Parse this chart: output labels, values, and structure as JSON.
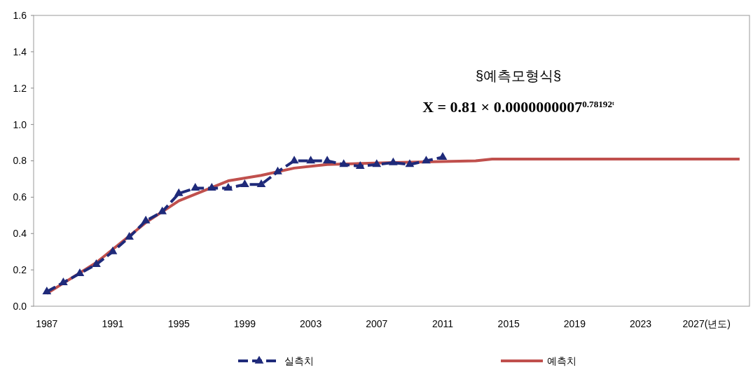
{
  "chart_data": {
    "type": "line",
    "annotations": [
      "§예측모형식§",
      "X = 0.81 × 0.0000000007$^{0.78192ᵗ}$"
    ],
    "xlim": [
      1986.2,
      2029.6
    ],
    "ylim": [
      0,
      1.6
    ],
    "xticks": [
      1987,
      1991,
      1995,
      1999,
      2003,
      2007,
      2011,
      2015,
      2019,
      2023,
      {
        "value": 2027,
        "label": "2027(년도)"
      }
    ],
    "yticks": [
      {
        "value": 0,
        "label": "0.0"
      },
      0.2,
      0.4,
      0.6,
      0.8,
      {
        "value": 1,
        "label": "1.0"
      },
      1.2,
      1.4,
      1.6
    ],
    "legend": "bottom",
    "grid": false,
    "series": [
      {
        "name": "실측치",
        "color": "#1f2a7a",
        "marker": "triangle",
        "line_style": "dashed",
        "x": [
          1987,
          1988,
          1989,
          1990,
          1991,
          1992,
          1993,
          1994,
          1995,
          1996,
          1997,
          1998,
          1999,
          2000,
          2001,
          2002,
          2003,
          2004,
          2005,
          2006,
          2007,
          2008,
          2009,
          2010,
          2011
        ],
        "values": [
          0.08,
          0.13,
          0.18,
          0.23,
          0.3,
          0.38,
          0.47,
          0.52,
          0.62,
          0.65,
          0.65,
          0.65,
          0.67,
          0.67,
          0.74,
          0.8,
          0.8,
          0.8,
          0.78,
          0.77,
          0.78,
          0.79,
          0.78,
          0.8,
          0.82
        ]
      },
      {
        "name": "예측치",
        "color": "#c0504d",
        "marker": "none",
        "line_style": "solid",
        "x": [
          1987,
          1990,
          1993,
          1995,
          1998,
          2000,
          2002,
          2004,
          2008,
          2013,
          2014,
          2029
        ],
        "values": [
          0.07,
          0.24,
          0.46,
          0.58,
          0.69,
          0.72,
          0.76,
          0.78,
          0.79,
          0.8,
          0.81,
          0.81
        ]
      }
    ]
  }
}
